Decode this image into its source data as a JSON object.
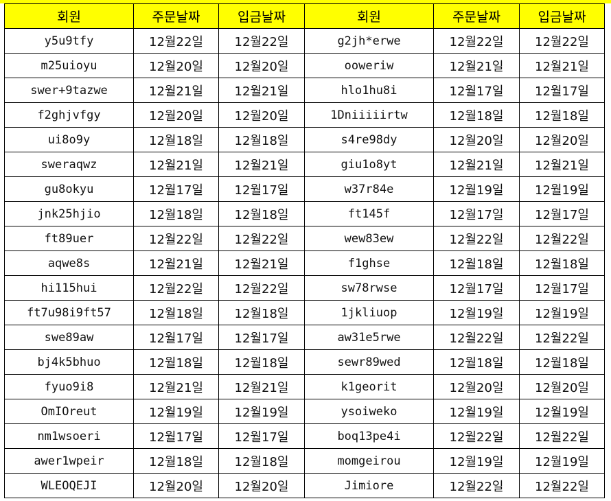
{
  "headers": [
    "회원",
    "주문날짜",
    "입금날짜",
    "회원",
    "주문날짜",
    "입금날짜"
  ],
  "colors": {
    "header_bg": "#ffff00",
    "grid": "#000000"
  },
  "rows": [
    [
      "y5u9tfy",
      "12월22일",
      "12월22일",
      "g2jh*erwe",
      "12월22일",
      "12월22일"
    ],
    [
      "m25uioyu",
      "12월20일",
      "12월20일",
      "ooweriw",
      "12월21일",
      "12월21일"
    ],
    [
      "swer+9tazwe",
      "12월21일",
      "12월21일",
      "hlo1hu8i",
      "12월17일",
      "12월17일"
    ],
    [
      "f2ghjvfgy",
      "12월20일",
      "12월20일",
      "1Dniiiiirtw",
      "12월18일",
      "12월18일"
    ],
    [
      "ui8o9y",
      "12월18일",
      "12월18일",
      "s4re98dy",
      "12월20일",
      "12월20일"
    ],
    [
      "sweraqwz",
      "12월21일",
      "12월21일",
      "giu1o8yt",
      "12월21일",
      "12월21일"
    ],
    [
      "gu8okyu",
      "12월17일",
      "12월17일",
      "w37r84e",
      "12월19일",
      "12월19일"
    ],
    [
      "jnk25hjio",
      "12월18일",
      "12월18일",
      "ft145f",
      "12월17일",
      "12월17일"
    ],
    [
      "ft89uer",
      "12월22일",
      "12월22일",
      "wew83ew",
      "12월22일",
      "12월22일"
    ],
    [
      "aqwe8s",
      "12월21일",
      "12월21일",
      "f1ghse",
      "12월18일",
      "12월18일"
    ],
    [
      "hi115hui",
      "12월22일",
      "12월22일",
      "sw78rwse",
      "12월17일",
      "12월17일"
    ],
    [
      "ft7u98i9ft57",
      "12월18일",
      "12월18일",
      "1jkliuop",
      "12월19일",
      "12월19일"
    ],
    [
      "swe89aw",
      "12월17일",
      "12월17일",
      "aw31e5rwe",
      "12월22일",
      "12월22일"
    ],
    [
      "bj4k5bhuo",
      "12월18일",
      "12월18일",
      "sewr89wed",
      "12월18일",
      "12월18일"
    ],
    [
      "fyuo9i8",
      "12월21일",
      "12월21일",
      "k1georit",
      "12월20일",
      "12월20일"
    ],
    [
      "OmIOreut",
      "12월19일",
      "12월19일",
      "ysoiweko",
      "12월19일",
      "12월19일"
    ],
    [
      "nm1wsoeri",
      "12월17일",
      "12월17일",
      "boq13pe4i",
      "12월22일",
      "12월22일"
    ],
    [
      "awer1wpeir",
      "12월18일",
      "12월18일",
      "momgeirou",
      "12월19일",
      "12월19일"
    ],
    [
      "WLEOQEJI",
      "12월20일",
      "12월20일",
      "Jimiore",
      "12월22일",
      "12월22일"
    ]
  ]
}
